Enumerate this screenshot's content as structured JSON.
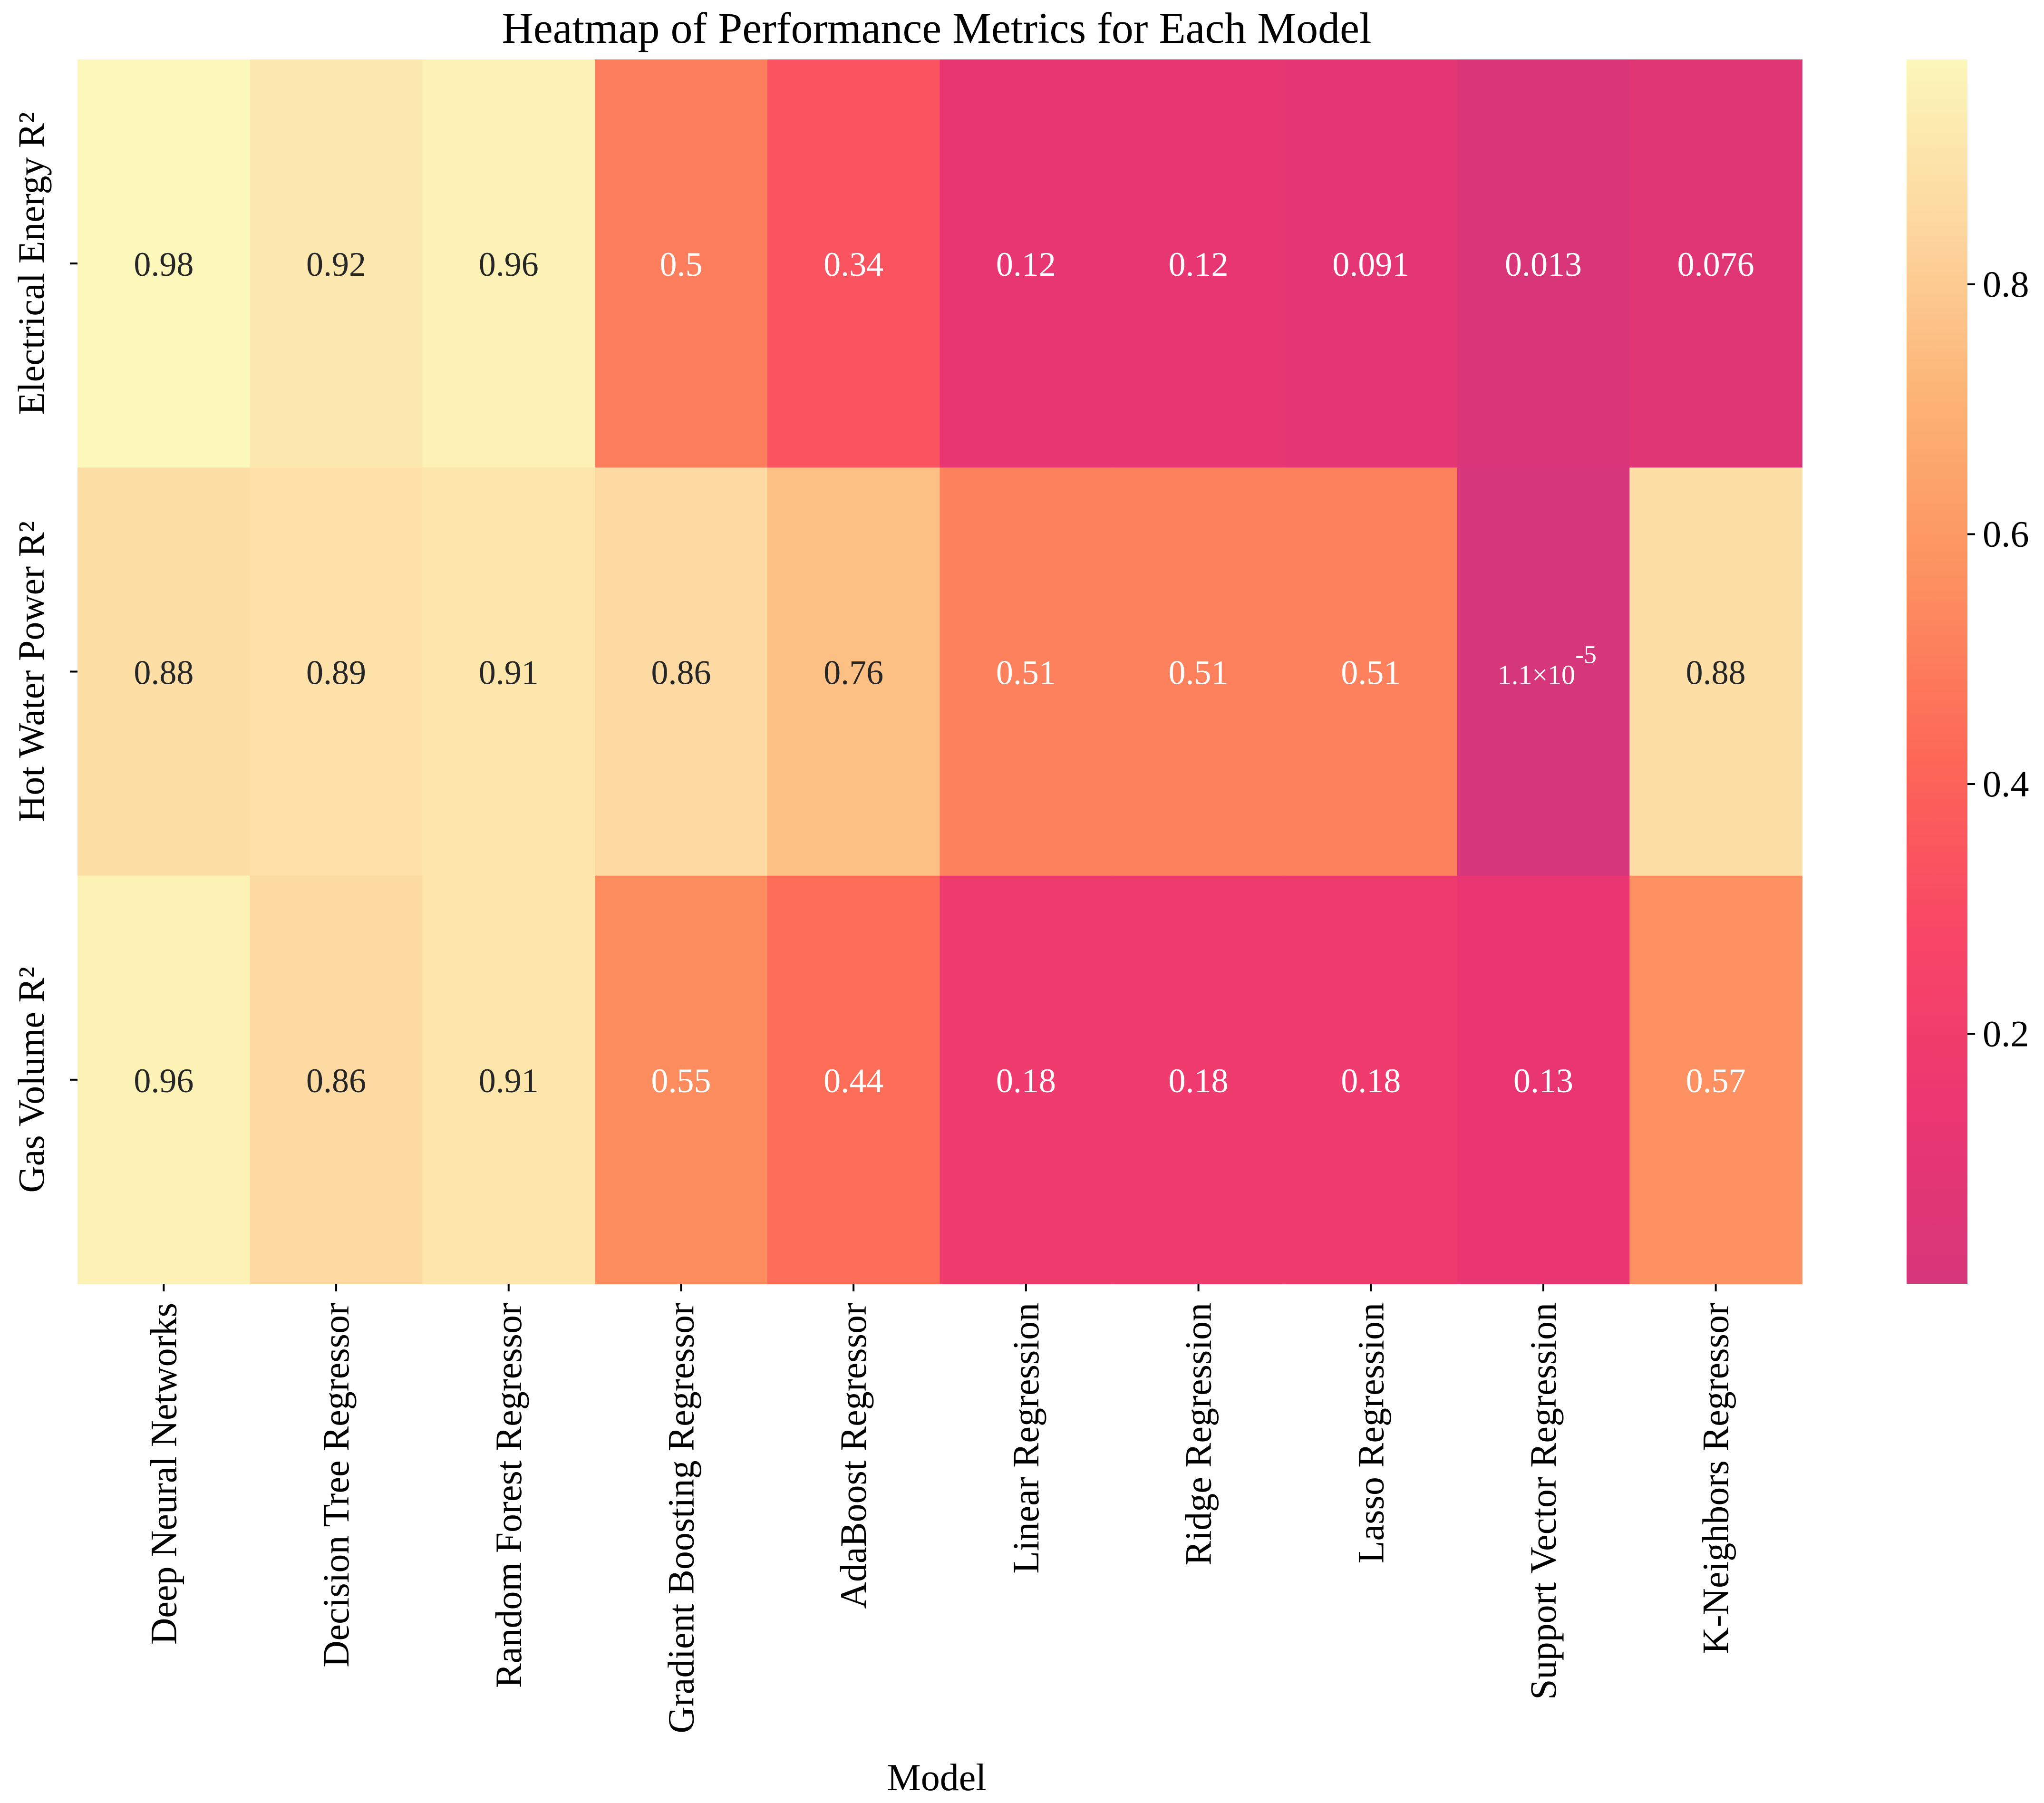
{
  "chart_data": {
    "type": "heatmap",
    "title": "Heatmap of Performance Metrics for Each Model",
    "xlabel": "Model",
    "ylabel": "",
    "x_categories": [
      "Deep Neural Networks",
      "Decision Tree Regressor",
      "Random Forest Regressor",
      "Gradient Boosting Regressor",
      "AdaBoost Regressor",
      "Linear Regression",
      "Ridge Regression",
      "Lasso Regression",
      "Support Vector Regression",
      "K-Neighbors Regressor"
    ],
    "y_categories": [
      "Electrical Energy R²",
      "Hot Water Power R²",
      "Gas Volume R²"
    ],
    "values": [
      [
        0.98,
        0.92,
        0.96,
        0.5,
        0.34,
        0.12,
        0.12,
        0.091,
        0.013,
        0.076
      ],
      [
        0.88,
        0.89,
        0.91,
        0.86,
        0.76,
        0.51,
        0.51,
        0.51,
        1.1e-05,
        0.88
      ],
      [
        0.96,
        0.86,
        0.91,
        0.55,
        0.44,
        0.18,
        0.18,
        0.18,
        0.13,
        0.57
      ]
    ],
    "annotations": [
      [
        "0.98",
        "0.92",
        "0.96",
        "0.5",
        "0.34",
        "0.12",
        "0.12",
        "0.091",
        "0.013",
        "0.076"
      ],
      [
        "0.88",
        "0.89",
        "0.91",
        "0.86",
        "0.76",
        "0.51",
        "0.51",
        "0.51",
        "1.1×10^-5",
        "0.88"
      ],
      [
        "0.96",
        "0.86",
        "0.91",
        "0.55",
        "0.44",
        "0.18",
        "0.18",
        "0.18",
        "0.13",
        "0.57"
      ]
    ],
    "special_annotation": {
      "mantissa": "1.1×10",
      "exponent": "-5"
    },
    "colorbar": {
      "min": 1.1e-05,
      "max": 0.98,
      "ticks": [
        0.2,
        0.4,
        0.6,
        0.8
      ],
      "tick_labels": [
        "0.2",
        "0.4",
        "0.6",
        "0.8"
      ],
      "colormap": "spectral_r (light yellow high, magenta low)",
      "colors": [
        "#D6367A",
        "#EB3671",
        "#F84666",
        "#FD6757",
        "#FD8F60",
        "#FCB172",
        "#FDD59E",
        "#FCF7BA"
      ]
    },
    "text_color_dark": "#262626",
    "text_color_light": "#ffffff"
  }
}
